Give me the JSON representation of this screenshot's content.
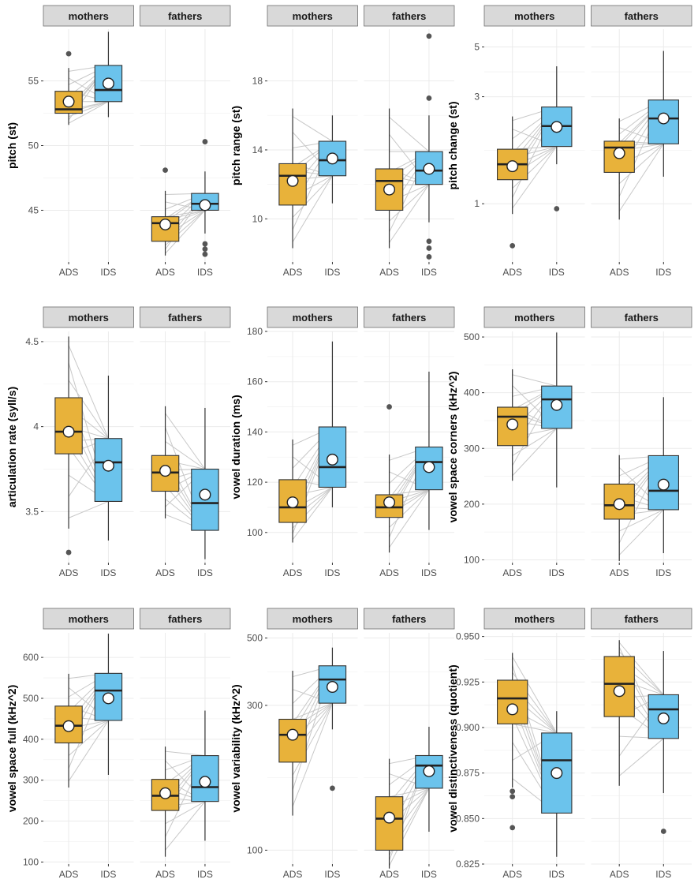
{
  "colors": {
    "ads": "#E8B23A",
    "ids": "#6BC3EC",
    "strip": "#D9D9D9",
    "grid": "#EBEBEB",
    "line": "#C8C8C8",
    "outlier": "#555555"
  },
  "chart_data": [
    {
      "type": "box",
      "ylabel": "pitch (st)",
      "yticks": [
        45,
        50,
        55
      ],
      "ylim": [
        41,
        59
      ],
      "log": false,
      "panels": [
        {
          "title": "mothers",
          "ads": {
            "q1": 52.5,
            "med": 52.8,
            "q3": 54.2,
            "lo": 51.6,
            "hi": 56,
            "mean": 53.4,
            "out": [
              57.1
            ]
          },
          "ids": {
            "q1": 53.4,
            "med": 54.3,
            "q3": 56.2,
            "lo": 52.2,
            "hi": 58.8,
            "mean": 54.8,
            "out": []
          }
        },
        {
          "title": "fathers",
          "ads": {
            "q1": 42.6,
            "med": 44.0,
            "q3": 44.5,
            "lo": 41.5,
            "hi": 46.5,
            "mean": 43.9,
            "out": [
              48.1
            ]
          },
          "ids": {
            "q1": 45.0,
            "med": 45.5,
            "q3": 46.3,
            "lo": 43.2,
            "hi": 48.0,
            "mean": 45.4,
            "out": [
              50.3,
              42.4,
              42.0,
              41.6
            ]
          }
        }
      ]
    },
    {
      "type": "box",
      "ylabel": "pitch range (st)",
      "yticks": [
        10,
        14,
        18
      ],
      "ylim": [
        7.5,
        21
      ],
      "log": false,
      "panels": [
        {
          "title": "mothers",
          "ads": {
            "q1": 10.8,
            "med": 12.5,
            "q3": 13.2,
            "lo": 8.3,
            "hi": 16.4,
            "mean": 12.2,
            "out": []
          },
          "ids": {
            "q1": 12.5,
            "med": 13.4,
            "q3": 14.5,
            "lo": 10.9,
            "hi": 16.0,
            "mean": 13.5,
            "out": []
          }
        },
        {
          "title": "fathers",
          "ads": {
            "q1": 10.5,
            "med": 12.2,
            "q3": 12.9,
            "lo": 8.3,
            "hi": 16.4,
            "mean": 11.7,
            "out": []
          },
          "ids": {
            "q1": 12.0,
            "med": 12.8,
            "q3": 13.9,
            "lo": 9.8,
            "hi": 16.0,
            "mean": 12.9,
            "out": [
              20.6,
              17.0,
              8.7,
              8.3,
              7.8
            ]
          }
        }
      ]
    },
    {
      "type": "box",
      "ylabel": "pitch change (st)",
      "yticks": [
        1,
        3,
        5
      ],
      "ylim": [
        0.55,
        6.0
      ],
      "log": true,
      "panels": [
        {
          "title": "mothers",
          "ads": {
            "q1": 1.28,
            "med": 1.5,
            "q3": 1.75,
            "lo": 0.9,
            "hi": 2.45,
            "mean": 1.47,
            "out": [
              0.65
            ]
          },
          "ids": {
            "q1": 1.8,
            "med": 2.22,
            "q3": 2.7,
            "lo": 1.5,
            "hi": 4.1,
            "mean": 2.2,
            "out": [
              0.95
            ]
          }
        },
        {
          "title": "fathers",
          "ads": {
            "q1": 1.38,
            "med": 1.78,
            "q3": 1.9,
            "lo": 0.85,
            "hi": 2.4,
            "mean": 1.68,
            "out": []
          },
          "ids": {
            "q1": 1.85,
            "med": 2.4,
            "q3": 2.9,
            "lo": 1.32,
            "hi": 4.8,
            "mean": 2.4,
            "out": []
          }
        }
      ]
    },
    {
      "type": "box",
      "ylabel": "articulation rate (syll/s)",
      "yticks": [
        3.5,
        4.0,
        4.5
      ],
      "ylim": [
        3.2,
        4.56
      ],
      "log": false,
      "panels": [
        {
          "title": "mothers",
          "ads": {
            "q1": 3.84,
            "med": 3.97,
            "q3": 4.17,
            "lo": 3.4,
            "hi": 4.53,
            "mean": 3.97,
            "out": [
              3.26
            ]
          },
          "ids": {
            "q1": 3.56,
            "med": 3.79,
            "q3": 3.93,
            "lo": 3.33,
            "hi": 4.3,
            "mean": 3.77,
            "out": []
          }
        },
        {
          "title": "fathers",
          "ads": {
            "q1": 3.62,
            "med": 3.73,
            "q3": 3.83,
            "lo": 3.46,
            "hi": 4.12,
            "mean": 3.74,
            "out": []
          },
          "ids": {
            "q1": 3.39,
            "med": 3.55,
            "q3": 3.75,
            "lo": 3.22,
            "hi": 4.11,
            "mean": 3.6,
            "out": []
          }
        }
      ]
    },
    {
      "type": "box",
      "ylabel": "vowel duration (ms)",
      "yticks": [
        100,
        120,
        140,
        160,
        180
      ],
      "ylim": [
        88,
        180
      ],
      "log": false,
      "panels": [
        {
          "title": "mothers",
          "ads": {
            "q1": 104,
            "med": 110,
            "q3": 121,
            "lo": 96,
            "hi": 137,
            "mean": 112,
            "out": []
          },
          "ids": {
            "q1": 118,
            "med": 126,
            "q3": 142,
            "lo": 110,
            "hi": 176,
            "mean": 129,
            "out": []
          }
        },
        {
          "title": "fathers",
          "ads": {
            "q1": 106,
            "med": 110,
            "q3": 115,
            "lo": 92,
            "hi": 131,
            "mean": 112,
            "out": [
              150
            ]
          },
          "ids": {
            "q1": 117,
            "med": 128,
            "q3": 134,
            "lo": 101,
            "hi": 164,
            "mean": 126,
            "out": []
          }
        }
      ]
    },
    {
      "type": "box",
      "ylabel": "vowel space corners (kHz^2)",
      "yticks": [
        100,
        200,
        300,
        400,
        500
      ],
      "ylim": [
        95,
        510
      ],
      "log": false,
      "panels": [
        {
          "title": "mothers",
          "ads": {
            "q1": 305,
            "med": 357,
            "q3": 374,
            "lo": 242,
            "hi": 442,
            "mean": 343,
            "out": []
          },
          "ids": {
            "q1": 336,
            "med": 388,
            "q3": 412,
            "lo": 230,
            "hi": 508,
            "mean": 378,
            "out": []
          }
        },
        {
          "title": "fathers",
          "ads": {
            "q1": 173,
            "med": 198,
            "q3": 236,
            "lo": 98,
            "hi": 288,
            "mean": 200,
            "out": []
          },
          "ids": {
            "q1": 190,
            "med": 224,
            "q3": 287,
            "lo": 112,
            "hi": 392,
            "mean": 235,
            "out": []
          }
        }
      ]
    },
    {
      "type": "box",
      "ylabel": "vowel space full (kHz^2)",
      "yticks": [
        100,
        200,
        300,
        400,
        500,
        600
      ],
      "ylim": [
        95,
        660
      ],
      "log": false,
      "panels": [
        {
          "title": "mothers",
          "ads": {
            "q1": 391,
            "med": 433,
            "q3": 481,
            "lo": 282,
            "hi": 560,
            "mean": 432,
            "out": []
          },
          "ids": {
            "q1": 446,
            "med": 519,
            "q3": 561,
            "lo": 313,
            "hi": 658,
            "mean": 500,
            "out": []
          }
        },
        {
          "title": "fathers",
          "ads": {
            "q1": 226,
            "med": 262,
            "q3": 302,
            "lo": 113,
            "hi": 382,
            "mean": 268,
            "out": []
          },
          "ids": {
            "q1": 248,
            "med": 283,
            "q3": 360,
            "lo": 152,
            "hi": 470,
            "mean": 296,
            "out": []
          }
        }
      ]
    },
    {
      "type": "box",
      "ylabel": "vowel variability (kHz^2)",
      "yticks": [
        100,
        300,
        500
      ],
      "ylim": [
        90,
        520
      ],
      "log": true,
      "panels": [
        {
          "title": "mothers",
          "ads": {
            "q1": 195,
            "med": 240,
            "q3": 270,
            "lo": 130,
            "hi": 390,
            "mean": 240,
            "out": []
          },
          "ids": {
            "q1": 305,
            "med": 365,
            "q3": 405,
            "lo": 250,
            "hi": 465,
            "mean": 345,
            "out": [
              160
            ]
          }
        },
        {
          "title": "fathers",
          "ads": {
            "q1": 100,
            "med": 127,
            "q3": 150,
            "lo": 87,
            "hi": 200,
            "mean": 128,
            "out": []
          },
          "ids": {
            "q1": 160,
            "med": 190,
            "q3": 205,
            "lo": 115,
            "hi": 255,
            "mean": 182,
            "out": []
          }
        }
      ]
    },
    {
      "type": "box",
      "ylabel": "vowel distinctiveness (quotient)",
      "yticks": [
        0.825,
        0.85,
        0.875,
        0.9,
        0.925,
        0.95
      ],
      "ylim": [
        0.825,
        0.952
      ],
      "log": false,
      "panels": [
        {
          "title": "mothers",
          "ads": {
            "q1": 0.902,
            "med": 0.916,
            "q3": 0.926,
            "lo": 0.867,
            "hi": 0.941,
            "mean": 0.91,
            "out": [
              0.865,
              0.862,
              0.845
            ]
          },
          "ids": {
            "q1": 0.853,
            "med": 0.882,
            "q3": 0.897,
            "lo": 0.829,
            "hi": 0.909,
            "mean": 0.875,
            "out": []
          }
        },
        {
          "title": "fathers",
          "ads": {
            "q1": 0.906,
            "med": 0.924,
            "q3": 0.939,
            "lo": 0.868,
            "hi": 0.948,
            "mean": 0.92,
            "out": []
          },
          "ids": {
            "q1": 0.894,
            "med": 0.91,
            "q3": 0.918,
            "lo": 0.864,
            "hi": 0.942,
            "mean": 0.905,
            "out": [
              0.843
            ]
          }
        }
      ]
    }
  ],
  "xlabels": [
    "ADS",
    "IDS"
  ]
}
